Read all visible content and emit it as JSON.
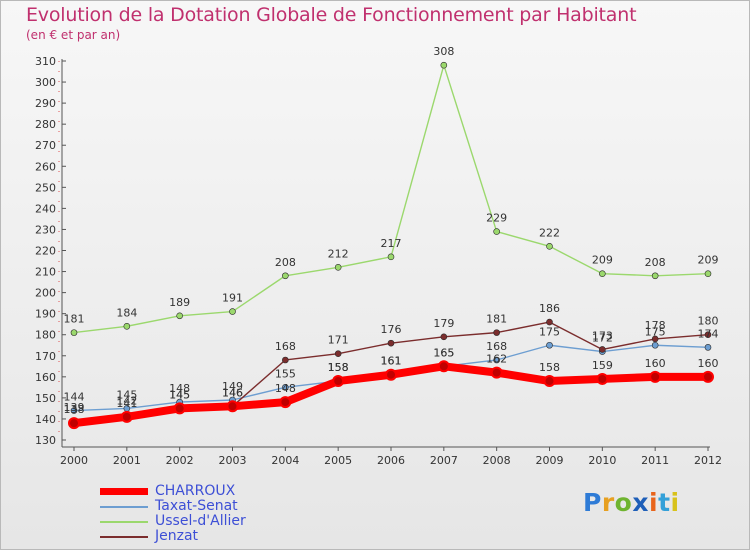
{
  "header": {
    "title": "Evolution de la Dotation Globale de Fonctionnement par Habitant",
    "subtitle": "(en € et par an)"
  },
  "logo": {
    "letters": [
      "P",
      "r",
      "o",
      "x",
      "i",
      "t",
      "i"
    ],
    "colors": [
      "#2e7bd6",
      "#e7a021",
      "#6fb430",
      "#1f5fb8",
      "#e8641b",
      "#34a0d8",
      "#d8c21b"
    ]
  },
  "chart_data": {
    "type": "line",
    "title": "Evolution de la Dotation Globale de Fonctionnement par Habitant",
    "subtitle": "(en € et par an)",
    "x": [
      "2000",
      "2001",
      "2002",
      "2003",
      "2004",
      "2005",
      "2006",
      "2007",
      "2008",
      "2009",
      "2010",
      "2011",
      "2012"
    ],
    "ylim": [
      130,
      310
    ],
    "yticks": [
      130,
      140,
      150,
      160,
      170,
      180,
      190,
      200,
      210,
      220,
      230,
      240,
      250,
      260,
      270,
      280,
      290,
      300,
      310
    ],
    "grid": false,
    "legend_position": "bottom-left",
    "series": [
      {
        "name": "CHARROUX",
        "color": "#ff0000",
        "values": [
          138,
          141,
          145,
          146,
          148,
          158,
          161,
          165,
          162,
          158,
          159,
          160,
          160
        ]
      },
      {
        "name": "Taxat-Senat",
        "color": "#6d9ed1",
        "values": [
          144,
          145,
          148,
          149,
          155,
          158,
          161,
          165,
          168,
          175,
          172,
          175,
          174
        ]
      },
      {
        "name": "Ussel-d'Allier",
        "color": "#9bd86d",
        "values": [
          181,
          184,
          189,
          191,
          208,
          212,
          217,
          308,
          229,
          222,
          209,
          208,
          209
        ]
      },
      {
        "name": "Jenzat",
        "color": "#7b2d2d",
        "values": [
          139,
          142,
          145,
          146,
          168,
          171,
          176,
          179,
          181,
          186,
          173,
          178,
          180
        ]
      }
    ]
  }
}
